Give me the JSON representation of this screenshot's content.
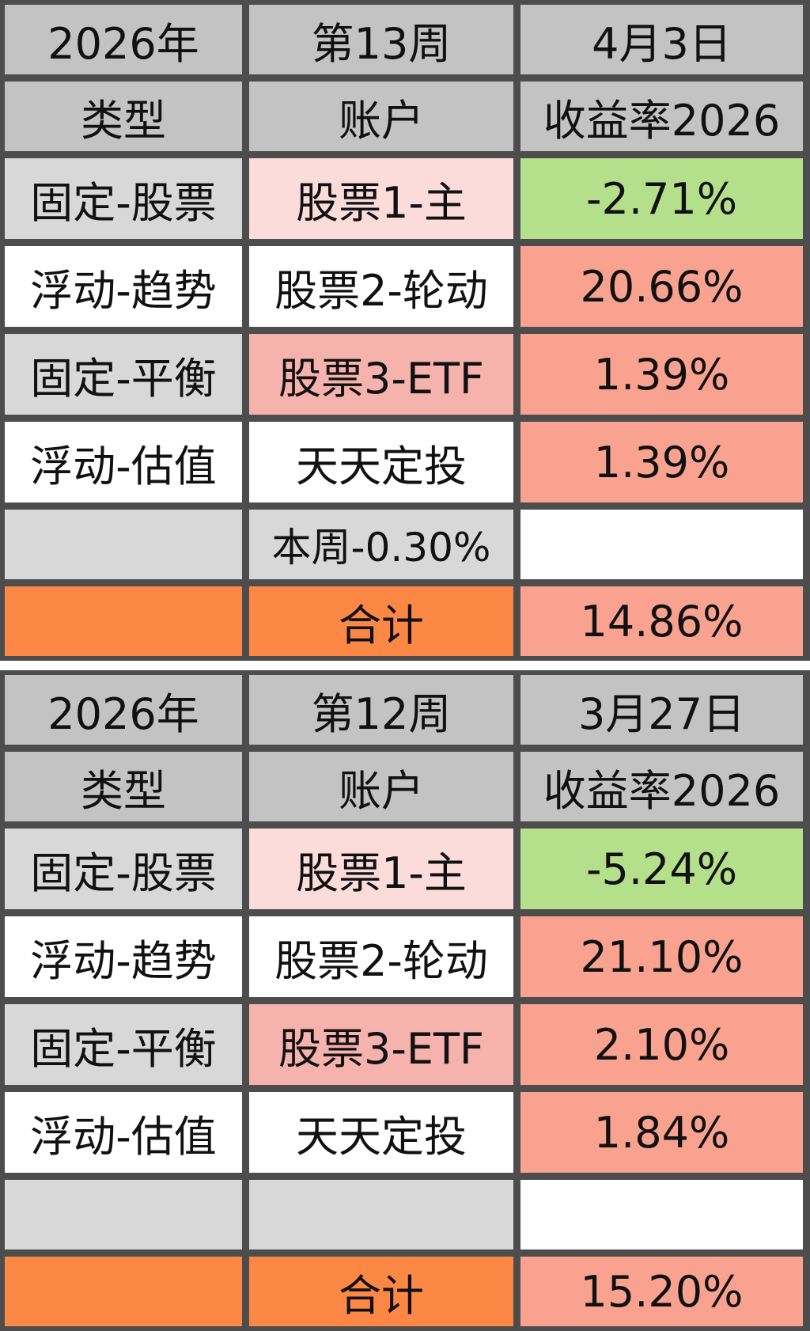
{
  "tables": [
    {
      "year": "2026年",
      "week": "第13周",
      "date": "4月3日",
      "headers": {
        "type": "类型",
        "account": "账户",
        "return": "收益率2026"
      },
      "rows": [
        {
          "type": "固定-股票",
          "account": "股票1-主",
          "return": "-2.71%"
        },
        {
          "type": "浮动-趋势",
          "account": "股票2-轮动",
          "return": "20.66%"
        },
        {
          "type": "固定-平衡",
          "account": "股票3-ETF",
          "return": "1.39%"
        },
        {
          "type": "浮动-估值",
          "account": "天天定投",
          "return": "1.39%"
        }
      ],
      "weekly_note": "本周-0.30%",
      "total_label": "合计",
      "total": "14.86%"
    },
    {
      "year": "2026年",
      "week": "第12周",
      "date": "3月27日",
      "headers": {
        "type": "类型",
        "account": "账户",
        "return": "收益率2026"
      },
      "rows": [
        {
          "type": "固定-股票",
          "account": "股票1-主",
          "return": "-5.24%"
        },
        {
          "type": "浮动-趋势",
          "account": "股票2-轮动",
          "return": "21.10%"
        },
        {
          "type": "固定-平衡",
          "account": "股票3-ETF",
          "return": "2.10%"
        },
        {
          "type": "浮动-估值",
          "account": "天天定投",
          "return": "1.84%"
        }
      ],
      "weekly_note": "",
      "total_label": "合计",
      "total": "15.20%"
    }
  ],
  "colors": {
    "header": "#c3c3c3",
    "positive": "#f9a290",
    "negative": "#b4e08b",
    "total": "#fd8845"
  }
}
